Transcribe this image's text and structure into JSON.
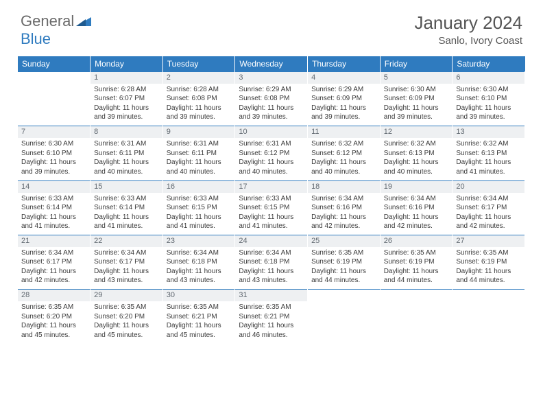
{
  "brand": {
    "part1": "General",
    "part2": "Blue"
  },
  "title": "January 2024",
  "location": "Sanlo, Ivory Coast",
  "colors": {
    "header_bg": "#2f7bbf",
    "header_text": "#ffffff",
    "daynum_bg": "#eef0f2",
    "daynum_border": "#2f7bbf",
    "text": "#3a3a3a",
    "title_text": "#555555",
    "logo_gray": "#6a6a6a",
    "logo_blue": "#2f7bbf"
  },
  "day_headers": [
    "Sunday",
    "Monday",
    "Tuesday",
    "Wednesday",
    "Thursday",
    "Friday",
    "Saturday"
  ],
  "weeks": [
    {
      "nums": [
        "",
        "1",
        "2",
        "3",
        "4",
        "5",
        "6"
      ],
      "cells": [
        null,
        {
          "sunrise": "Sunrise: 6:28 AM",
          "sunset": "Sunset: 6:07 PM",
          "d1": "Daylight: 11 hours",
          "d2": "and 39 minutes."
        },
        {
          "sunrise": "Sunrise: 6:28 AM",
          "sunset": "Sunset: 6:08 PM",
          "d1": "Daylight: 11 hours",
          "d2": "and 39 minutes."
        },
        {
          "sunrise": "Sunrise: 6:29 AM",
          "sunset": "Sunset: 6:08 PM",
          "d1": "Daylight: 11 hours",
          "d2": "and 39 minutes."
        },
        {
          "sunrise": "Sunrise: 6:29 AM",
          "sunset": "Sunset: 6:09 PM",
          "d1": "Daylight: 11 hours",
          "d2": "and 39 minutes."
        },
        {
          "sunrise": "Sunrise: 6:30 AM",
          "sunset": "Sunset: 6:09 PM",
          "d1": "Daylight: 11 hours",
          "d2": "and 39 minutes."
        },
        {
          "sunrise": "Sunrise: 6:30 AM",
          "sunset": "Sunset: 6:10 PM",
          "d1": "Daylight: 11 hours",
          "d2": "and 39 minutes."
        }
      ]
    },
    {
      "nums": [
        "7",
        "8",
        "9",
        "10",
        "11",
        "12",
        "13"
      ],
      "cells": [
        {
          "sunrise": "Sunrise: 6:30 AM",
          "sunset": "Sunset: 6:10 PM",
          "d1": "Daylight: 11 hours",
          "d2": "and 39 minutes."
        },
        {
          "sunrise": "Sunrise: 6:31 AM",
          "sunset": "Sunset: 6:11 PM",
          "d1": "Daylight: 11 hours",
          "d2": "and 40 minutes."
        },
        {
          "sunrise": "Sunrise: 6:31 AM",
          "sunset": "Sunset: 6:11 PM",
          "d1": "Daylight: 11 hours",
          "d2": "and 40 minutes."
        },
        {
          "sunrise": "Sunrise: 6:31 AM",
          "sunset": "Sunset: 6:12 PM",
          "d1": "Daylight: 11 hours",
          "d2": "and 40 minutes."
        },
        {
          "sunrise": "Sunrise: 6:32 AM",
          "sunset": "Sunset: 6:12 PM",
          "d1": "Daylight: 11 hours",
          "d2": "and 40 minutes."
        },
        {
          "sunrise": "Sunrise: 6:32 AM",
          "sunset": "Sunset: 6:13 PM",
          "d1": "Daylight: 11 hours",
          "d2": "and 40 minutes."
        },
        {
          "sunrise": "Sunrise: 6:32 AM",
          "sunset": "Sunset: 6:13 PM",
          "d1": "Daylight: 11 hours",
          "d2": "and 41 minutes."
        }
      ]
    },
    {
      "nums": [
        "14",
        "15",
        "16",
        "17",
        "18",
        "19",
        "20"
      ],
      "cells": [
        {
          "sunrise": "Sunrise: 6:33 AM",
          "sunset": "Sunset: 6:14 PM",
          "d1": "Daylight: 11 hours",
          "d2": "and 41 minutes."
        },
        {
          "sunrise": "Sunrise: 6:33 AM",
          "sunset": "Sunset: 6:14 PM",
          "d1": "Daylight: 11 hours",
          "d2": "and 41 minutes."
        },
        {
          "sunrise": "Sunrise: 6:33 AM",
          "sunset": "Sunset: 6:15 PM",
          "d1": "Daylight: 11 hours",
          "d2": "and 41 minutes."
        },
        {
          "sunrise": "Sunrise: 6:33 AM",
          "sunset": "Sunset: 6:15 PM",
          "d1": "Daylight: 11 hours",
          "d2": "and 41 minutes."
        },
        {
          "sunrise": "Sunrise: 6:34 AM",
          "sunset": "Sunset: 6:16 PM",
          "d1": "Daylight: 11 hours",
          "d2": "and 42 minutes."
        },
        {
          "sunrise": "Sunrise: 6:34 AM",
          "sunset": "Sunset: 6:16 PM",
          "d1": "Daylight: 11 hours",
          "d2": "and 42 minutes."
        },
        {
          "sunrise": "Sunrise: 6:34 AM",
          "sunset": "Sunset: 6:17 PM",
          "d1": "Daylight: 11 hours",
          "d2": "and 42 minutes."
        }
      ]
    },
    {
      "nums": [
        "21",
        "22",
        "23",
        "24",
        "25",
        "26",
        "27"
      ],
      "cells": [
        {
          "sunrise": "Sunrise: 6:34 AM",
          "sunset": "Sunset: 6:17 PM",
          "d1": "Daylight: 11 hours",
          "d2": "and 42 minutes."
        },
        {
          "sunrise": "Sunrise: 6:34 AM",
          "sunset": "Sunset: 6:17 PM",
          "d1": "Daylight: 11 hours",
          "d2": "and 43 minutes."
        },
        {
          "sunrise": "Sunrise: 6:34 AM",
          "sunset": "Sunset: 6:18 PM",
          "d1": "Daylight: 11 hours",
          "d2": "and 43 minutes."
        },
        {
          "sunrise": "Sunrise: 6:34 AM",
          "sunset": "Sunset: 6:18 PM",
          "d1": "Daylight: 11 hours",
          "d2": "and 43 minutes."
        },
        {
          "sunrise": "Sunrise: 6:35 AM",
          "sunset": "Sunset: 6:19 PM",
          "d1": "Daylight: 11 hours",
          "d2": "and 44 minutes."
        },
        {
          "sunrise": "Sunrise: 6:35 AM",
          "sunset": "Sunset: 6:19 PM",
          "d1": "Daylight: 11 hours",
          "d2": "and 44 minutes."
        },
        {
          "sunrise": "Sunrise: 6:35 AM",
          "sunset": "Sunset: 6:19 PM",
          "d1": "Daylight: 11 hours",
          "d2": "and 44 minutes."
        }
      ]
    },
    {
      "nums": [
        "28",
        "29",
        "30",
        "31",
        "",
        "",
        ""
      ],
      "cells": [
        {
          "sunrise": "Sunrise: 6:35 AM",
          "sunset": "Sunset: 6:20 PM",
          "d1": "Daylight: 11 hours",
          "d2": "and 45 minutes."
        },
        {
          "sunrise": "Sunrise: 6:35 AM",
          "sunset": "Sunset: 6:20 PM",
          "d1": "Daylight: 11 hours",
          "d2": "and 45 minutes."
        },
        {
          "sunrise": "Sunrise: 6:35 AM",
          "sunset": "Sunset: 6:21 PM",
          "d1": "Daylight: 11 hours",
          "d2": "and 45 minutes."
        },
        {
          "sunrise": "Sunrise: 6:35 AM",
          "sunset": "Sunset: 6:21 PM",
          "d1": "Daylight: 11 hours",
          "d2": "and 46 minutes."
        },
        null,
        null,
        null
      ]
    }
  ]
}
